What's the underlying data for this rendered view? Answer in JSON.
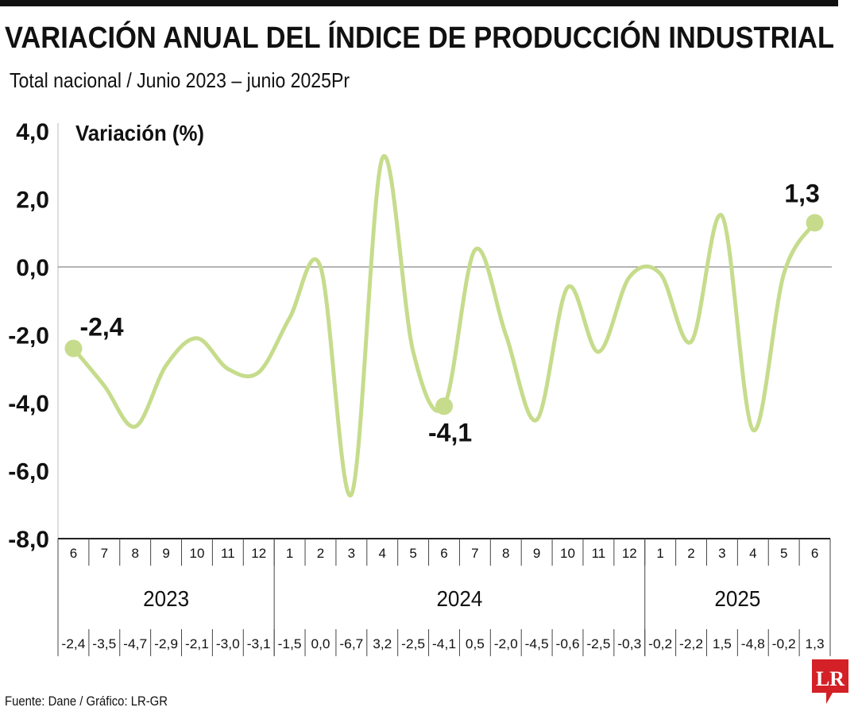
{
  "chart_data": {
    "type": "line",
    "title": "VARIACIÓN ANUAL DEL ÍNDICE DE PRODUCCIÓN INDUSTRIAL",
    "subtitle": "Total nacional / Junio 2023 – junio 2025Pr",
    "ylabel": "Variación (%)",
    "ylim": [
      -8,
      4
    ],
    "yticks": [
      "4,0",
      "2,0",
      "0,0",
      "-2,0",
      "-4,0",
      "-6,0",
      "-8,0"
    ],
    "ytick_values": [
      4,
      2,
      0,
      -2,
      -4,
      -6,
      -8
    ],
    "months": [
      "6",
      "7",
      "8",
      "9",
      "10",
      "11",
      "12",
      "1",
      "2",
      "3",
      "4",
      "5",
      "6",
      "7",
      "8",
      "9",
      "10",
      "11",
      "12",
      "1",
      "2",
      "3",
      "4",
      "5",
      "6"
    ],
    "years": [
      {
        "label": "2023",
        "months": 7
      },
      {
        "label": "2024",
        "months": 12
      },
      {
        "label": "2025",
        "months": 6
      }
    ],
    "values": [
      -2.4,
      -3.5,
      -4.7,
      -2.9,
      -2.1,
      -3.0,
      -3.1,
      -1.5,
      0.0,
      -6.7,
      3.2,
      -2.5,
      -4.1,
      0.5,
      -2.0,
      -4.5,
      -0.6,
      -2.5,
      -0.3,
      -0.2,
      -2.2,
      1.5,
      -4.8,
      -0.2,
      1.3
    ],
    "value_labels": [
      "-2,4",
      "-3,5",
      "-4,7",
      "-2,9",
      "-2,1",
      "-3,0",
      "-3,1",
      "-1,5",
      "0,0",
      "-6,7",
      "3,2",
      "-2,5",
      "-4,1",
      "0,5",
      "-2,0",
      "-4,5",
      "-0,6",
      "-2,5",
      "-0,3",
      "-0,2",
      "-2,2",
      "1,5",
      "-4,8",
      "-0,2",
      "1,3"
    ],
    "highlights": [
      {
        "index": 0,
        "label": "-2,4"
      },
      {
        "index": 12,
        "label": "-4,1"
      },
      {
        "index": 24,
        "label": "1,3"
      }
    ],
    "line_color": "#c6dc8c",
    "grid": false
  },
  "source": "Fuente: Dane / Gráfico: LR-GR",
  "logo": "LR",
  "logo_color": "#d42027"
}
